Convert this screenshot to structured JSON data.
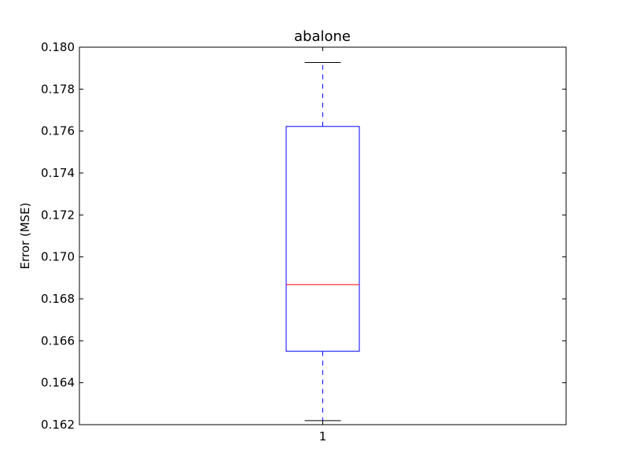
{
  "chart_data": {
    "type": "boxplot",
    "title": "abalone",
    "xlabel": "",
    "ylabel": "Error (MSE)",
    "ylim": [
      0.162,
      0.18
    ],
    "yticks": [
      "0.162",
      "0.164",
      "0.166",
      "0.168",
      "0.170",
      "0.172",
      "0.174",
      "0.176",
      "0.178",
      "0.180"
    ],
    "categories": [
      "1"
    ],
    "boxes": [
      {
        "category": "1",
        "whisker_low": 0.16219,
        "q1": 0.1655,
        "median": 0.16868,
        "q3": 0.17622,
        "whisker_high": 0.17927
      }
    ],
    "grid": false,
    "colors": {
      "box": "#0000ff",
      "median": "#ff0000",
      "whisker": "#0000ff",
      "cap": "#000000",
      "axes": "#000000"
    }
  }
}
